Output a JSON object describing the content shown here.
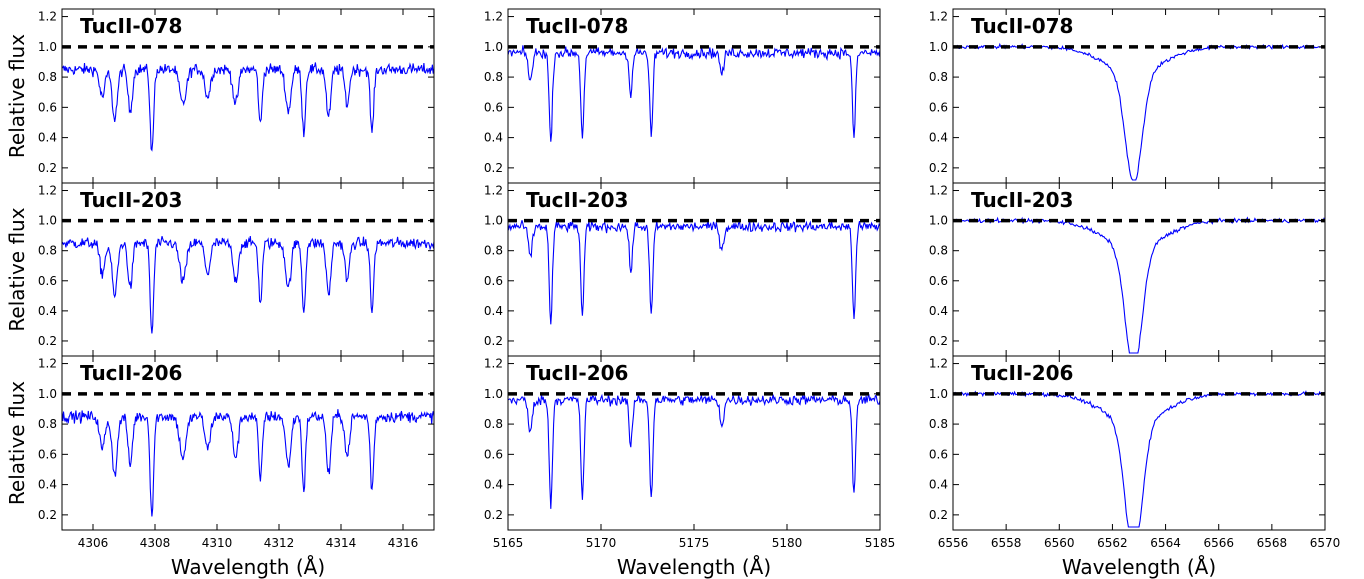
{
  "chart_data": {
    "type": "line",
    "xlabel": "Wavelength (Å)",
    "ylabel": "Relative flux",
    "ylim": [
      0.1,
      1.25
    ],
    "yticks": [
      0.2,
      0.4,
      0.6,
      0.8,
      1.0,
      1.2
    ],
    "continuum_level": 1.0,
    "line_color": "#0000ff",
    "continuum_color": "#000000",
    "stars": [
      "TucII-078",
      "TucII-203",
      "TucII-206"
    ],
    "columns": [
      {
        "xlim": [
          4305,
          4317
        ],
        "xticks": [
          4306,
          4308,
          4310,
          4312,
          4314,
          4316
        ],
        "step": 0.025,
        "baseline": 0.85,
        "noise": 0.06,
        "lines": [
          {
            "center": 4306.3,
            "depth": 0.2,
            "width": 0.12
          },
          {
            "center": 4306.7,
            "depth": 0.35,
            "width": 0.12
          },
          {
            "center": 4307.2,
            "depth": 0.3,
            "width": 0.1
          },
          {
            "center": 4307.9,
            "depth": 0.6,
            "width": 0.08
          },
          {
            "center": 4308.9,
            "depth": 0.25,
            "width": 0.15
          },
          {
            "center": 4309.7,
            "depth": 0.2,
            "width": 0.12
          },
          {
            "center": 4310.6,
            "depth": 0.25,
            "width": 0.12
          },
          {
            "center": 4311.4,
            "depth": 0.4,
            "width": 0.08
          },
          {
            "center": 4312.3,
            "depth": 0.3,
            "width": 0.12
          },
          {
            "center": 4312.8,
            "depth": 0.45,
            "width": 0.08
          },
          {
            "center": 4313.6,
            "depth": 0.35,
            "width": 0.1
          },
          {
            "center": 4314.2,
            "depth": 0.25,
            "width": 0.1
          },
          {
            "center": 4315.0,
            "depth": 0.45,
            "width": 0.08
          }
        ]
      },
      {
        "xlim": [
          5165,
          5185
        ],
        "xticks": [
          5165,
          5170,
          5175,
          5180,
          5185
        ],
        "step": 0.05,
        "baseline": 0.96,
        "noise": 0.055,
        "lines": [
          {
            "center": 5166.2,
            "depth": 0.2,
            "width": 0.15
          },
          {
            "center": 5167.3,
            "depth": 0.65,
            "width": 0.12
          },
          {
            "center": 5169.0,
            "depth": 0.6,
            "width": 0.12
          },
          {
            "center": 5171.6,
            "depth": 0.3,
            "width": 0.12
          },
          {
            "center": 5172.7,
            "depth": 0.6,
            "width": 0.12
          },
          {
            "center": 5176.5,
            "depth": 0.15,
            "width": 0.15
          },
          {
            "center": 5183.6,
            "depth": 0.6,
            "width": 0.12
          }
        ]
      },
      {
        "xlim": [
          6556,
          6570
        ],
        "xticks": [
          6556,
          6558,
          6560,
          6562,
          6564,
          6566,
          6568,
          6570
        ],
        "step": 0.04,
        "baseline": 1.0,
        "noise": 0.02,
        "lines": [
          {
            "center": 6562.8,
            "depth": 0.8,
            "width": 0.45
          },
          {
            "center": 6562.8,
            "depth": 0.18,
            "width": 1.6
          }
        ]
      }
    ]
  }
}
